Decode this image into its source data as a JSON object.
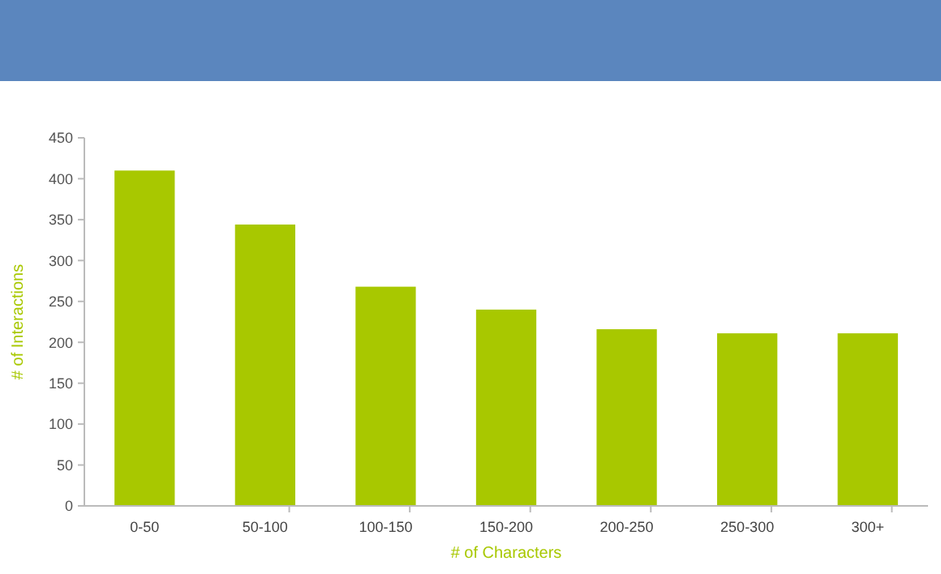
{
  "chart_data": {
    "type": "bar",
    "xlabel": "# of Characters",
    "ylabel": "# of Interactions",
    "categories": [
      "0-50",
      "50-100",
      "100-150",
      "150-200",
      "200-250",
      "250-300",
      "300+"
    ],
    "values": [
      410,
      344,
      268,
      240,
      216,
      211,
      211
    ],
    "color": "#a8c800",
    "ylim": [
      0,
      450
    ],
    "yticks": [
      0,
      50,
      100,
      150,
      200,
      250,
      300,
      350,
      400,
      450
    ],
    "grid": false
  }
}
